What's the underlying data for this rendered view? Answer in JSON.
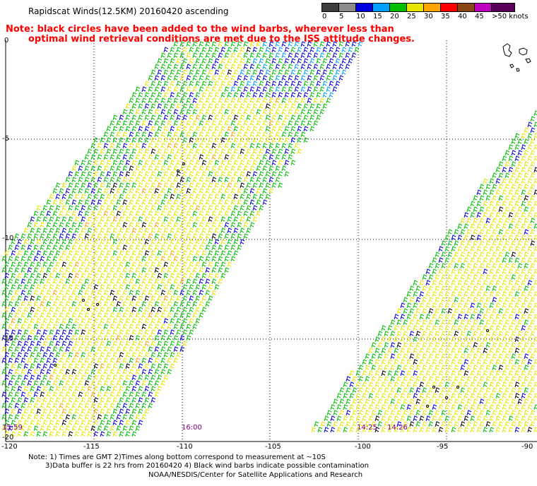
{
  "title": "Rapidscat Winds(12.5KM) 20160420 ascending",
  "note_line1": "Note: black circles have been added to the wind barbs, wherever less than",
  "note_line2": "optimal wind retrieval conditions are met due to the ISS attitude changes.",
  "legend": {
    "labels": [
      "0",
      "5",
      "10",
      "15",
      "20",
      "25",
      "30",
      "35",
      "40",
      "45",
      ">50 knots"
    ],
    "colors": [
      "#3c3c3c",
      "#8c8c8c",
      "#0000e0",
      "#00a0ff",
      "#00c000",
      "#e6e600",
      "#ffa500",
      "#ff0000",
      "#8b4513",
      "#c000c0",
      "#5a005a"
    ]
  },
  "axes": {
    "lat_labels": [
      "0",
      "-5",
      "-10",
      "-15",
      "-20"
    ],
    "lon_labels": [
      "-120",
      "-115",
      "-110",
      "-105",
      "-100",
      "-95",
      "-90"
    ]
  },
  "time_labels": [
    "15:59",
    "16:00",
    "14:25",
    "14:26"
  ],
  "footer": {
    "line1": "Note: 1) Times are GMT 2)Times along bottom correspond to measurement at ~10S",
    "line2": "3)Data buffer is 22 hrs from 20160420 4) Black wind barbs indicate possible contamination",
    "line3": "NOAA/NESDIS/Center for Satellite Applications and Research"
  }
}
